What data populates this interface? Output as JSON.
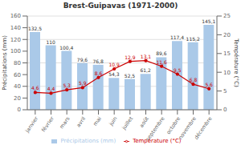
{
  "chart_data": {
    "type": "bar",
    "title": "Brest-Guipavas (1971-2000)",
    "categories": [
      "janvier",
      "février",
      "mars",
      "avril",
      "mai",
      "juin",
      "juillet",
      "août",
      "septembre",
      "octobre",
      "novembre",
      "décembre"
    ],
    "series": [
      {
        "name": "Précipitations (mm)",
        "type": "bar",
        "color": "#aac9e8",
        "values": [
          132.5,
          110,
          100.4,
          79.6,
          76.8,
          54.3,
          52.5,
          61.2,
          89.6,
          117.4,
          115.2,
          145.1
        ],
        "value_labels": [
          "132,5",
          "110",
          "100,4",
          "79,6",
          "76,8",
          "54,3",
          "52,5",
          "61,2",
          "89,6",
          "117,4",
          "115,2",
          "145,1"
        ]
      },
      {
        "name": "Température (°C)",
        "type": "line",
        "axis": "y2",
        "color": "#cc0000",
        "marker": "circle",
        "values": [
          4.6,
          4.4,
          5.3,
          5.9,
          8.6,
          10.9,
          12.9,
          13.1,
          11.6,
          9.5,
          6.8,
          5.6
        ],
        "value_labels": [
          "4,6",
          "4,4",
          "5,3",
          "5,9",
          "8,6",
          "10,9",
          "12,9",
          "13,1",
          "11,6",
          "9,5",
          "6,8",
          "5,6"
        ]
      }
    ],
    "ylabel": "Précipitations (mm)",
    "y2label": "Température (°C)",
    "ylim": [
      0,
      160
    ],
    "yticks": [
      0,
      20,
      40,
      60,
      80,
      100,
      120,
      140,
      160
    ],
    "y2lim": [
      0,
      25
    ],
    "y2ticks": [
      0,
      5,
      10,
      15,
      20,
      25
    ],
    "grid": true,
    "legend": "bottom",
    "data_labels": true
  }
}
